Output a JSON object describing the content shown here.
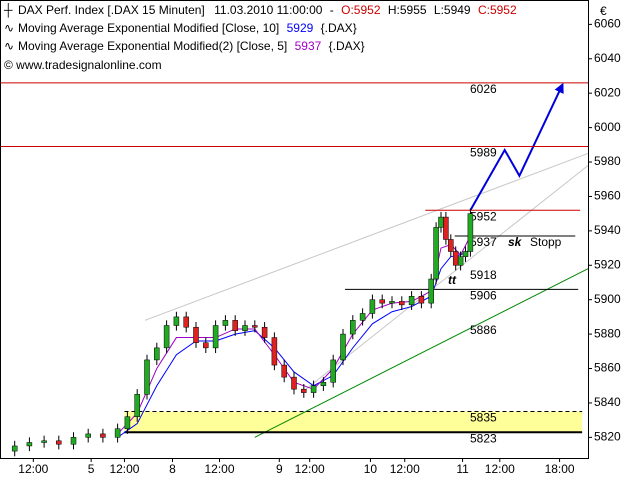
{
  "chart_data": {
    "type": "candlestick",
    "header": {
      "line1": [
        "DAX Perf. Index [.DAX  15 Minuten]",
        "11.03.2010 11:00:00",
        "-",
        "O:5952",
        "H:5955",
        "L:5949",
        "C:5952"
      ],
      "line2": [
        "Moving Average Exponential Modified [Close, 10]",
        "5929",
        "{.DAX}"
      ],
      "line3": [
        "Moving Average Exponential Modified(2) [Close, 5]",
        "5937",
        "{.DAX}"
      ],
      "copyright": "© www.tradesignalonline.com",
      "currency": "€"
    },
    "xlim": [
      0,
      60
    ],
    "ylim": [
      5808,
      6073
    ],
    "yticks": [
      5820,
      5840,
      5860,
      5880,
      5900,
      5920,
      5940,
      5960,
      5980,
      6000,
      6020,
      6040,
      6060
    ],
    "xticks": [
      {
        "value": 3.4,
        "label": "12:00"
      },
      {
        "value": 9.3,
        "label": "5"
      },
      {
        "value": 12.7,
        "label": "12:00"
      },
      {
        "value": 17.6,
        "label": "8"
      },
      {
        "value": 22.4,
        "label": "12:00"
      },
      {
        "value": 28.5,
        "label": "9"
      },
      {
        "value": 31.6,
        "label": "12:00"
      },
      {
        "value": 37.8,
        "label": "10"
      },
      {
        "value": 41.3,
        "label": "12:00"
      },
      {
        "value": 47.2,
        "label": "11"
      },
      {
        "value": 51.0,
        "label": "12:00"
      },
      {
        "value": 57.1,
        "label": "18:00"
      }
    ],
    "up_color": "#22aa22",
    "down_color": "#dd2222",
    "x": [
      1.5,
      3,
      4.5,
      6,
      7.5,
      9,
      10.5,
      12,
      13,
      14,
      15,
      16,
      17,
      18,
      19,
      20,
      21,
      22,
      23,
      24,
      25,
      26,
      27,
      28,
      29,
      30,
      31,
      32,
      33,
      34,
      35,
      36,
      37,
      38,
      39,
      40,
      41,
      42,
      43,
      44,
      44.5,
      45,
      45.5,
      46,
      46.5,
      47,
      47.5,
      48
    ],
    "open": [
      5812,
      5815,
      5817,
      5818,
      5816,
      5820,
      5822,
      5820,
      5825,
      5832,
      5845,
      5865,
      5872,
      5885,
      5890,
      5884,
      5875,
      5872,
      5885,
      5888,
      5882,
      5885,
      5884,
      5878,
      5862,
      5855,
      5848,
      5846,
      5850,
      5852,
      5865,
      5880,
      5888,
      5892,
      5900,
      5898,
      5899,
      5897,
      5902,
      5898,
      5912,
      5942,
      5948,
      5935,
      5928,
      5920,
      5925,
      5928
    ],
    "high": [
      5818,
      5820,
      5821,
      5821,
      5823,
      5825,
      5825,
      5828,
      5835,
      5848,
      5868,
      5875,
      5888,
      5893,
      5893,
      5887,
      5878,
      5888,
      5891,
      5891,
      5888,
      5888,
      5887,
      5881,
      5865,
      5858,
      5851,
      5853,
      5855,
      5868,
      5883,
      5891,
      5895,
      5903,
      5903,
      5902,
      5902,
      5905,
      5905,
      5915,
      5945,
      5951,
      5951,
      5938,
      5931,
      5928,
      5931,
      5953
    ],
    "low": [
      5809,
      5812,
      5814,
      5813,
      5813,
      5817,
      5817,
      5817,
      5822,
      5829,
      5842,
      5862,
      5869,
      5882,
      5881,
      5872,
      5869,
      5869,
      5882,
      5879,
      5879,
      5881,
      5875,
      5859,
      5852,
      5845,
      5843,
      5843,
      5847,
      5849,
      5862,
      5877,
      5885,
      5889,
      5895,
      5895,
      5894,
      5894,
      5895,
      5895,
      5909,
      5939,
      5932,
      5925,
      5917,
      5917,
      5922,
      5925
    ],
    "close": [
      5815,
      5817,
      5818,
      5816,
      5820,
      5822,
      5820,
      5825,
      5832,
      5845,
      5865,
      5872,
      5885,
      5890,
      5884,
      5875,
      5872,
      5885,
      5888,
      5882,
      5885,
      5884,
      5878,
      5862,
      5855,
      5848,
      5846,
      5850,
      5852,
      5865,
      5880,
      5888,
      5892,
      5900,
      5898,
      5899,
      5897,
      5902,
      5898,
      5912,
      5942,
      5948,
      5935,
      5928,
      5920,
      5925,
      5928,
      5950
    ],
    "series": [
      {
        "color": "#0000ff",
        "x": [
          12,
          14,
          16,
          18,
          20,
          22,
          24,
          26,
          28,
          30,
          32,
          34,
          36,
          38,
          40,
          42,
          44,
          45,
          46,
          47,
          48
        ],
        "values": [
          5820,
          5828,
          5850,
          5868,
          5876,
          5876,
          5880,
          5882,
          5872,
          5858,
          5850,
          5856,
          5872,
          5886,
          5893,
          5896,
          5902,
          5918,
          5925,
          5926,
          5929
        ]
      },
      {
        "color": "#a000c8",
        "x": [
          12,
          14,
          16,
          18,
          20,
          22,
          24,
          26,
          28,
          30,
          32,
          34,
          36,
          38,
          40,
          42,
          44,
          45,
          46,
          47,
          48
        ],
        "values": [
          5822,
          5834,
          5860,
          5878,
          5878,
          5878,
          5883,
          5883,
          5868,
          5852,
          5848,
          5860,
          5880,
          5894,
          5898,
          5899,
          5905,
          5930,
          5932,
          5926,
          5937
        ]
      }
    ],
    "zone": {
      "from": 12.7,
      "to": 59.4,
      "low": 5823,
      "high": 5835,
      "color": "#ffff99"
    },
    "levels": [
      {
        "value": 6026,
        "color": "#cc0000",
        "style": "solid",
        "from": 0,
        "to": 60
      },
      {
        "value": 5989,
        "color": "#cc0000",
        "style": "solid",
        "from": 0,
        "to": 60
      },
      {
        "value": 5952,
        "color": "#cc0000",
        "style": "solid",
        "from": 43.4,
        "to": 59.2
      },
      {
        "value": 5937,
        "color": "#000000",
        "style": "solid",
        "from": 46.4,
        "to": 58.7
      },
      {
        "value": 5918,
        "color": "#c8c8c8",
        "style": "none",
        "from": 46.4,
        "to": 58.7
      },
      {
        "value": 5906,
        "color": "#000000",
        "style": "solid",
        "from": 35.2,
        "to": 59
      },
      {
        "value": 5886,
        "color": "#006600",
        "style": "none",
        "from": 46.4,
        "to": 58.7
      },
      {
        "value": 5835,
        "color": "#000000",
        "style": "dashed",
        "from": 12.7,
        "to": 59.4
      },
      {
        "value": 5823,
        "color": "#000000",
        "style": "thick",
        "from": 12.7,
        "to": 59.4
      }
    ],
    "trendlines": [
      {
        "color": "#008800",
        "x": [
          26,
          60
        ],
        "y": [
          5820,
          5918
        ]
      },
      {
        "color": "#c8c8c8",
        "x": [
          14.8,
          60
        ],
        "y": [
          5888,
          5985
        ]
      },
      {
        "color": "#c8c8c8",
        "x": [
          31,
          60
        ],
        "y": [
          5847,
          5978
        ]
      },
      {
        "color": "#0000dd",
        "arrow": true,
        "x": [
          48,
          51.5,
          53,
          57.4
        ],
        "y": [
          5952,
          5987,
          5972,
          6025
        ]
      }
    ],
    "annotations": [
      "sk",
      "Stopp",
      "tt"
    ]
  }
}
